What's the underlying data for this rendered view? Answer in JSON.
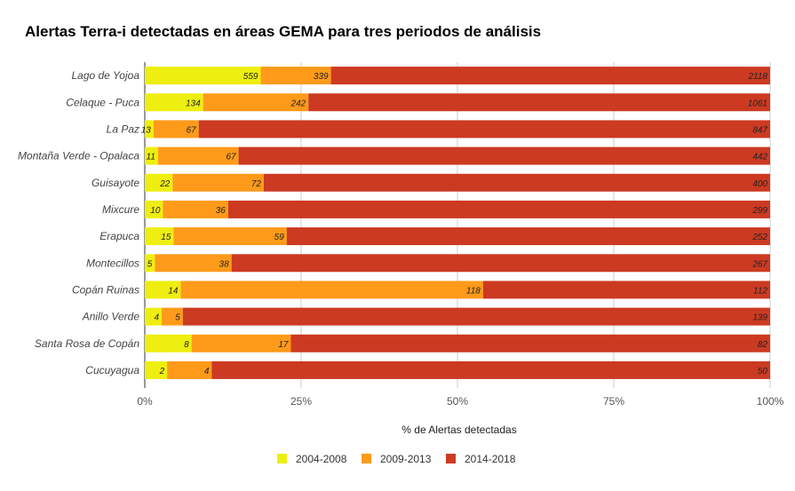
{
  "chart_data": {
    "type": "bar",
    "orientation": "horizontal",
    "stacked": "percent",
    "title": "Alertas Terra-i detectadas en áreas GEMA para tres periodos de análisis",
    "xlabel": "% de Alertas detectadas",
    "ylabel": "",
    "xlim": [
      0,
      100
    ],
    "xticks": [
      "0%",
      "25%",
      "50%",
      "75%",
      "100%"
    ],
    "grid": true,
    "legend_position": "bottom",
    "categories": [
      "Lago de Yojoa",
      "Celaque - Puca",
      "La Paz",
      "Montaña Verde - Opalaca",
      "Guisayote",
      "Mixcure",
      "Erapuca",
      "Montecillos",
      "Copán Ruinas",
      "Anillo Verde",
      "Santa Rosa de Copán",
      "Cucuyagua"
    ],
    "series": [
      {
        "name": "2004-2008",
        "color": "#eeee11",
        "values": [
          559,
          134,
          13,
          11,
          22,
          10,
          15,
          5,
          14,
          4,
          8,
          2
        ]
      },
      {
        "name": "2009-2013",
        "color": "#ff9a1a",
        "values": [
          339,
          242,
          67,
          67,
          72,
          36,
          59,
          38,
          118,
          5,
          17,
          4
        ]
      },
      {
        "name": "2014-2018",
        "color": "#cc3a22",
        "values": [
          2118,
          1061,
          847,
          442,
          400,
          299,
          252,
          267,
          112,
          139,
          82,
          50
        ]
      }
    ]
  }
}
